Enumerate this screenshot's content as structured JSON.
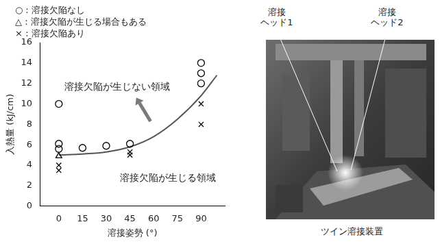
{
  "chart_data": {
    "type": "scatter",
    "x_label": "溶接姿勢 (°)",
    "y_label": "入熱量 (kJ/cm)",
    "xlim": [
      -12,
      105
    ],
    "xticks": [
      0,
      15,
      30,
      45,
      60,
      75,
      90
    ],
    "ylim": [
      0,
      16
    ],
    "yticks": [
      0,
      2,
      4,
      6,
      8,
      10,
      12,
      14,
      16
    ],
    "grid": false,
    "legend": "top-left",
    "annotations": [
      "溶接欠陥が生じない領域",
      "溶接欠陥が生じる領域"
    ],
    "series": [
      {
        "type": "line",
        "color": "#555555",
        "line_style": "solid",
        "x": [
          0,
          15,
          30,
          45,
          60,
          75,
          90,
          100
        ],
        "values": [
          5.0,
          5.1,
          5.3,
          5.8,
          6.8,
          8.5,
          10.8,
          12.8
        ]
      },
      {
        "name": "○：溶接欠陥なし",
        "marker": "circle",
        "color": "#000000",
        "x": [
          0,
          0,
          0,
          15,
          30,
          45,
          90,
          90,
          90
        ],
        "values": [
          10,
          6.1,
          5.6,
          5.7,
          5.9,
          6.1,
          14,
          13,
          12
        ]
      },
      {
        "name": "△：溶接欠陥が生じる場合もある",
        "marker": "triangle",
        "color": "#000000",
        "x": [
          0
        ],
        "values": [
          4.9
        ]
      },
      {
        "name": "×：溶接欠陥あり",
        "marker": "x",
        "color": "#000000",
        "x": [
          0,
          0,
          45,
          45,
          90,
          90
        ],
        "values": [
          4.0,
          3.5,
          5.3,
          5.0,
          10,
          8
        ]
      }
    ]
  },
  "photo": {
    "caption": "ツイン溶接装置",
    "labels": [
      "溶接\nヘッド1",
      "溶接\nヘッド2"
    ]
  }
}
